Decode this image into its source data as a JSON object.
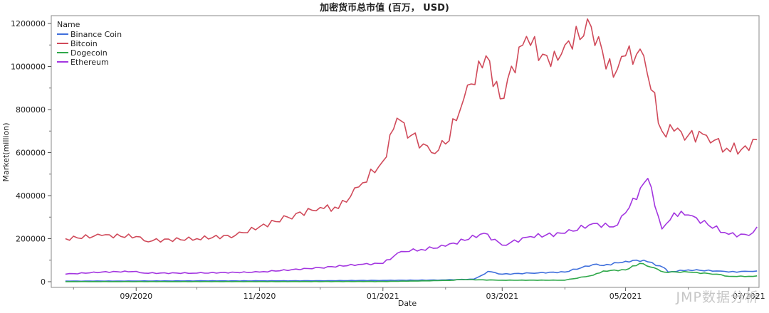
{
  "chart_data": {
    "type": "line",
    "title": "加密货币总市值 (百万， USD)",
    "xlabel": "Date",
    "ylabel": "Market(million)",
    "ylim": [
      0,
      1200000
    ],
    "yticks": [
      0,
      200000,
      400000,
      600000,
      800000,
      1000000,
      1200000
    ],
    "xlim": [
      "2020-07-21",
      "2021-07-06"
    ],
    "xticks": [
      {
        "date": "2020-09-01",
        "label": "09/2020"
      },
      {
        "date": "2020-11-01",
        "label": "11/2020"
      },
      {
        "date": "2021-01-01",
        "label": "01/2021"
      },
      {
        "date": "2021-03-01",
        "label": "03/2021"
      },
      {
        "date": "2021-05-01",
        "label": "05/2021"
      },
      {
        "date": "2021-07-01",
        "label": "07/2021"
      }
    ],
    "legend": {
      "title": "Name",
      "position": "top-left"
    },
    "grid": false,
    "series": [
      {
        "name": "Binance Coin",
        "color": "#3f6fdc",
        "points": [
          [
            "2020-07-28",
            3000
          ],
          [
            "2020-09-01",
            3100
          ],
          [
            "2020-10-01",
            4000
          ],
          [
            "2020-11-01",
            4000
          ],
          [
            "2020-12-01",
            4500
          ],
          [
            "2021-01-01",
            6000
          ],
          [
            "2021-02-01",
            8000
          ],
          [
            "2021-02-15",
            12000
          ],
          [
            "2021-02-19",
            30000
          ],
          [
            "2021-02-22",
            48000
          ],
          [
            "2021-03-01",
            35000
          ],
          [
            "2021-03-15",
            40000
          ],
          [
            "2021-04-01",
            45000
          ],
          [
            "2021-04-15",
            80000
          ],
          [
            "2021-04-20",
            75000
          ],
          [
            "2021-05-01",
            95000
          ],
          [
            "2021-05-10",
            100000
          ],
          [
            "2021-05-20",
            65000
          ],
          [
            "2021-05-22",
            45000
          ],
          [
            "2021-06-01",
            55000
          ],
          [
            "2021-06-15",
            50000
          ],
          [
            "2021-06-21",
            45000
          ],
          [
            "2021-07-01",
            48000
          ],
          [
            "2021-07-05",
            50000
          ]
        ]
      },
      {
        "name": "Bitcoin",
        "color": "#d04a5a",
        "points": [
          [
            "2020-07-28",
            200000
          ],
          [
            "2020-08-15",
            215000
          ],
          [
            "2020-09-01",
            210000
          ],
          [
            "2020-09-05",
            190000
          ],
          [
            "2020-10-01",
            200000
          ],
          [
            "2020-10-20",
            215000
          ],
          [
            "2020-11-01",
            255000
          ],
          [
            "2020-11-15",
            300000
          ],
          [
            "2020-12-01",
            345000
          ],
          [
            "2020-12-10",
            340000
          ],
          [
            "2020-12-20",
            440000
          ],
          [
            "2021-01-01",
            560000
          ],
          [
            "2021-01-08",
            760000
          ],
          [
            "2021-01-15",
            680000
          ],
          [
            "2021-01-25",
            600000
          ],
          [
            "2021-02-01",
            640000
          ],
          [
            "2021-02-10",
            850000
          ],
          [
            "2021-02-21",
            1050000
          ],
          [
            "2021-02-28",
            850000
          ],
          [
            "2021-03-13",
            1140000
          ],
          [
            "2021-03-25",
            1000000
          ],
          [
            "2021-04-01",
            1100000
          ],
          [
            "2021-04-14",
            1185000
          ],
          [
            "2021-04-25",
            950000
          ],
          [
            "2021-05-01",
            1050000
          ],
          [
            "2021-05-10",
            1050000
          ],
          [
            "2021-05-19",
            700000
          ],
          [
            "2021-05-25",
            700000
          ],
          [
            "2021-06-01",
            680000
          ],
          [
            "2021-06-10",
            680000
          ],
          [
            "2021-06-20",
            620000
          ],
          [
            "2021-07-01",
            610000
          ],
          [
            "2021-07-05",
            660000
          ]
        ]
      },
      {
        "name": "Dogecoin",
        "color": "#2fa84a",
        "points": [
          [
            "2020-07-28",
            400
          ],
          [
            "2020-09-01",
            400
          ],
          [
            "2020-11-01",
            500
          ],
          [
            "2021-01-01",
            1000
          ],
          [
            "2021-01-28",
            5000
          ],
          [
            "2021-02-05",
            7000
          ],
          [
            "2021-02-08",
            10000
          ],
          [
            "2021-03-01",
            7000
          ],
          [
            "2021-04-01",
            7000
          ],
          [
            "2021-04-15",
            30000
          ],
          [
            "2021-04-20",
            50000
          ],
          [
            "2021-05-01",
            55000
          ],
          [
            "2021-05-08",
            85000
          ],
          [
            "2021-05-15",
            65000
          ],
          [
            "2021-05-20",
            45000
          ],
          [
            "2021-06-01",
            45000
          ],
          [
            "2021-06-15",
            35000
          ],
          [
            "2021-06-21",
            25000
          ],
          [
            "2021-07-01",
            25000
          ],
          [
            "2021-07-05",
            27000
          ]
        ]
      },
      {
        "name": "Ethereum",
        "color": "#a336e0",
        "points": [
          [
            "2020-07-28",
            35000
          ],
          [
            "2020-08-15",
            45000
          ],
          [
            "2020-09-01",
            48000
          ],
          [
            "2020-09-05",
            40000
          ],
          [
            "2020-10-01",
            40000
          ],
          [
            "2020-11-01",
            45000
          ],
          [
            "2020-12-01",
            65000
          ],
          [
            "2020-12-20",
            80000
          ],
          [
            "2021-01-01",
            85000
          ],
          [
            "2021-01-10",
            140000
          ],
          [
            "2021-01-20",
            150000
          ],
          [
            "2021-02-01",
            165000
          ],
          [
            "2021-02-20",
            225000
          ],
          [
            "2021-03-01",
            170000
          ],
          [
            "2021-03-15",
            210000
          ],
          [
            "2021-04-01",
            225000
          ],
          [
            "2021-04-15",
            270000
          ],
          [
            "2021-04-25",
            255000
          ],
          [
            "2021-05-01",
            320000
          ],
          [
            "2021-05-12",
            480000
          ],
          [
            "2021-05-19",
            245000
          ],
          [
            "2021-05-25",
            320000
          ],
          [
            "2021-06-01",
            310000
          ],
          [
            "2021-06-21",
            220000
          ],
          [
            "2021-07-01",
            215000
          ],
          [
            "2021-07-05",
            255000
          ]
        ]
      }
    ]
  },
  "watermark": "JMP数据分析"
}
